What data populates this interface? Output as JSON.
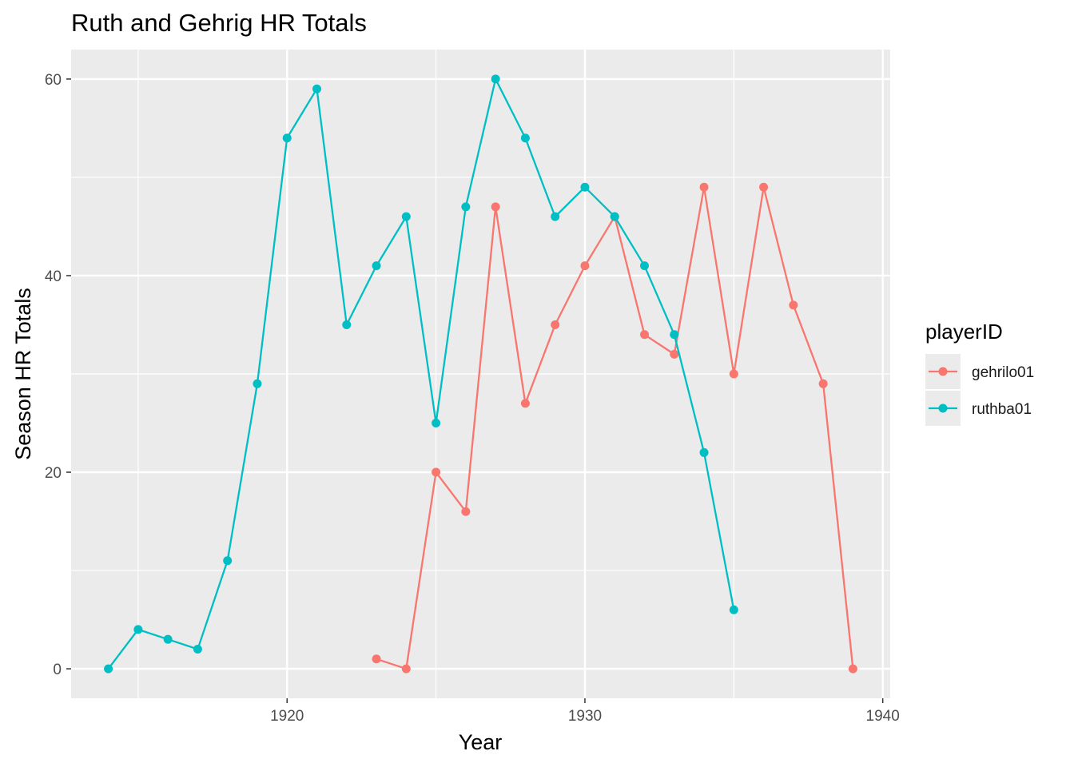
{
  "chart_data": {
    "type": "line",
    "title": "Ruth and Gehrig HR Totals",
    "xlabel": "Year",
    "ylabel": "Season HR Totals",
    "xlim": [
      1912.75,
      1940.25
    ],
    "ylim": [
      -3,
      63
    ],
    "x_ticks": [
      1920,
      1930,
      1940
    ],
    "x_minor": [
      1915,
      1925,
      1935
    ],
    "y_ticks": [
      0,
      20,
      40,
      60
    ],
    "y_minor": [
      10,
      30,
      50
    ],
    "grid": true,
    "legend": {
      "title": "playerID",
      "position": "right"
    },
    "series": [
      {
        "name": "gehrilo01",
        "color": "#F8766D",
        "x": [
          1923,
          1924,
          1925,
          1926,
          1927,
          1928,
          1929,
          1930,
          1931,
          1932,
          1933,
          1934,
          1935,
          1936,
          1937,
          1938,
          1939
        ],
        "y": [
          1,
          0,
          20,
          16,
          47,
          27,
          35,
          41,
          46,
          34,
          32,
          49,
          30,
          49,
          37,
          29,
          0
        ]
      },
      {
        "name": "ruthba01",
        "color": "#00BFC4",
        "x": [
          1914,
          1915,
          1916,
          1917,
          1918,
          1919,
          1920,
          1921,
          1922,
          1923,
          1924,
          1925,
          1926,
          1927,
          1928,
          1929,
          1930,
          1931,
          1932,
          1933,
          1934,
          1935
        ],
        "y": [
          0,
          4,
          3,
          2,
          11,
          29,
          54,
          59,
          35,
          41,
          46,
          25,
          47,
          60,
          54,
          46,
          49,
          46,
          41,
          34,
          22,
          6
        ]
      }
    ]
  }
}
